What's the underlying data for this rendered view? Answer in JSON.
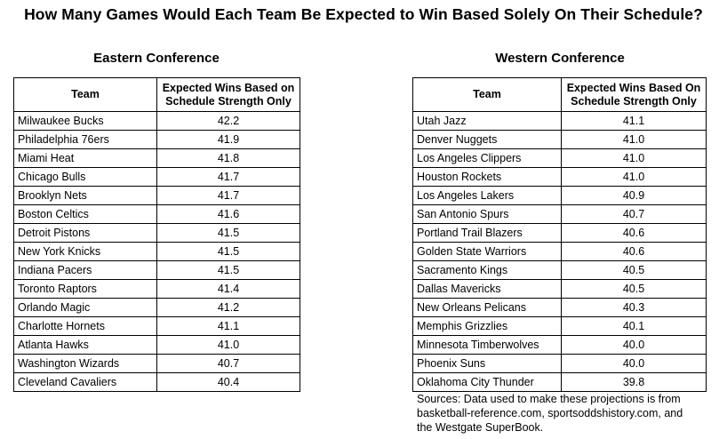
{
  "title": "How Many Games Would Each Team Be Expected to Win Based Solely On Their Schedule?",
  "eastern": {
    "heading": "Eastern Conference",
    "col_team": "Team",
    "col_wins_line1": "Expected Wins Based on",
    "col_wins_line2": "Schedule Strength Only",
    "rows": [
      {
        "team": "Milwaukee Bucks",
        "wins": "42.2"
      },
      {
        "team": "Philadelphia 76ers",
        "wins": "41.9"
      },
      {
        "team": "Miami Heat",
        "wins": "41.8"
      },
      {
        "team": "Chicago Bulls",
        "wins": "41.7"
      },
      {
        "team": "Brooklyn Nets",
        "wins": "41.7"
      },
      {
        "team": "Boston Celtics",
        "wins": "41.6"
      },
      {
        "team": "Detroit Pistons",
        "wins": "41.5"
      },
      {
        "team": "New York Knicks",
        "wins": "41.5"
      },
      {
        "team": "Indiana Pacers",
        "wins": "41.5"
      },
      {
        "team": "Toronto Raptors",
        "wins": "41.4"
      },
      {
        "team": "Orlando Magic",
        "wins": "41.2"
      },
      {
        "team": "Charlotte Hornets",
        "wins": "41.1"
      },
      {
        "team": "Atlanta Hawks",
        "wins": "41.0"
      },
      {
        "team": "Washington Wizards",
        "wins": "40.7"
      },
      {
        "team": "Cleveland Cavaliers",
        "wins": "40.4"
      }
    ]
  },
  "western": {
    "heading": "Western Conference",
    "col_team": "Team",
    "col_wins_line1": "Expected Wins Based On",
    "col_wins_line2": "Schedule Strength Only",
    "rows": [
      {
        "team": "Utah Jazz",
        "wins": "41.1"
      },
      {
        "team": "Denver Nuggets",
        "wins": "41.0"
      },
      {
        "team": "Los Angeles Clippers",
        "wins": "41.0"
      },
      {
        "team": "Houston Rockets",
        "wins": "41.0"
      },
      {
        "team": "Los Angeles Lakers",
        "wins": "40.9"
      },
      {
        "team": "San Antonio Spurs",
        "wins": "40.7"
      },
      {
        "team": "Portland Trail Blazers",
        "wins": "40.6"
      },
      {
        "team": "Golden State Warriors",
        "wins": "40.6"
      },
      {
        "team": "Sacramento Kings",
        "wins": "40.5"
      },
      {
        "team": "Dallas Mavericks",
        "wins": "40.5"
      },
      {
        "team": "New Orleans Pelicans",
        "wins": "40.3"
      },
      {
        "team": "Memphis Grizzlies",
        "wins": "40.1"
      },
      {
        "team": "Minnesota Timberwolves",
        "wins": "40.0"
      },
      {
        "team": "Phoenix Suns",
        "wins": "40.0"
      },
      {
        "team": "Oklahoma City Thunder",
        "wins": "39.8"
      }
    ]
  },
  "sources": {
    "line1": "Sources: Data used to make these projections is from",
    "line2": "basketball-reference.com, sportsoddshistory.com, and",
    "line3": "the Westgate SuperBook."
  }
}
